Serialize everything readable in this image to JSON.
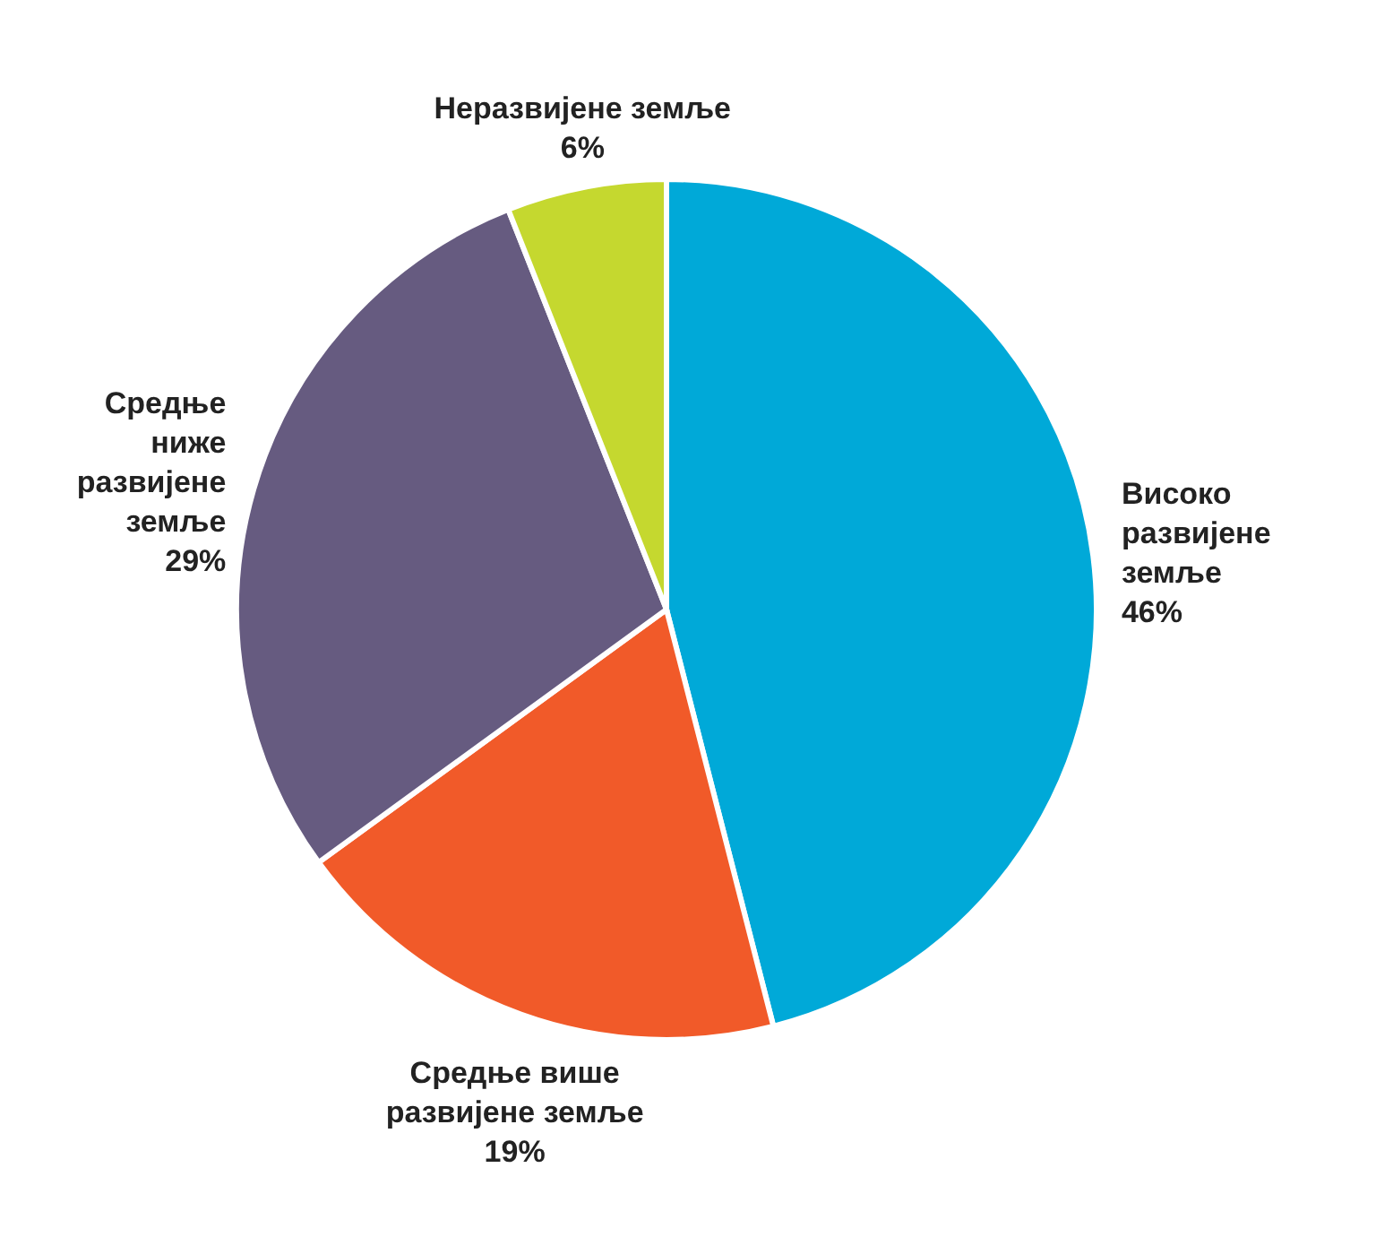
{
  "chart_data": {
    "type": "pie",
    "categories": [
      "Високо развијене земље",
      "Средње више развијене земље",
      "Средње ниже развијене земље",
      "Неразвијене земље"
    ],
    "values": [
      46,
      19,
      29,
      6
    ],
    "colors": [
      "#00a9d8",
      "#f15a29",
      "#665b80",
      "#c5d82f"
    ],
    "value_labels": [
      "46%",
      "19%",
      "29%",
      "6%"
    ]
  }
}
